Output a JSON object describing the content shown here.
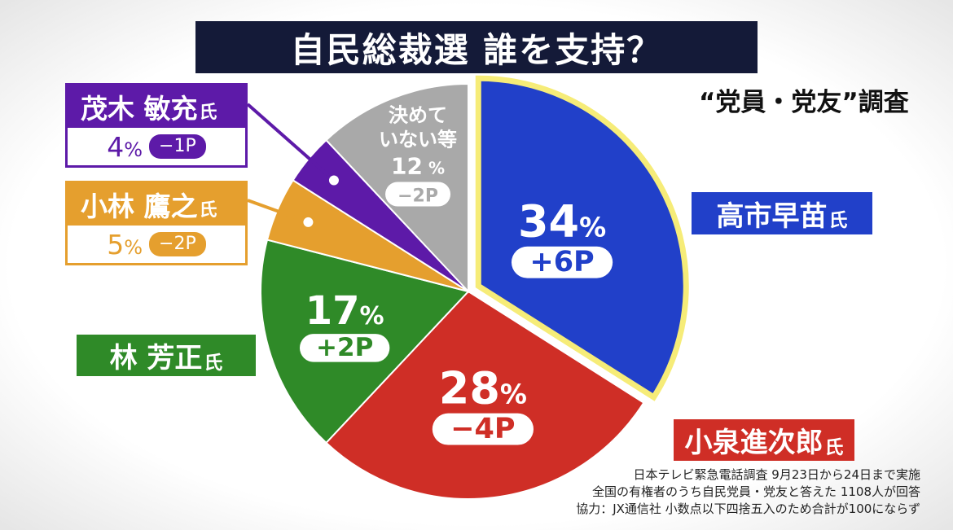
{
  "title": "自民総裁選 誰を支持？",
  "subtitle": "“党員・党友”調査",
  "colors": {
    "takaichi": "#2140c9",
    "koizumi": "#cf2e26",
    "hayashi": "#2f8a28",
    "kobayashi": "#e59f2e",
    "motegi": "#5d1aa8",
    "undecided": "#a9a9a9",
    "highlight": "#f6ec78"
  },
  "chart_data": {
    "type": "pie",
    "start": "12 o'clock, clockwise",
    "highlighted": "高市早苗",
    "slices": [
      {
        "name": "高市早苗",
        "suffix": "氏",
        "value": 34,
        "change": "+6P",
        "color_key": "takaichi"
      },
      {
        "name": "小泉進次郎",
        "suffix": "氏",
        "value": 28,
        "change": "−4P",
        "color_key": "koizumi"
      },
      {
        "name": "林 芳正",
        "suffix": "氏",
        "value": 17,
        "change": "+2P",
        "color_key": "hayashi"
      },
      {
        "name": "小林 鷹之",
        "suffix": "氏",
        "value": 5,
        "change": "−2P",
        "color_key": "kobayashi"
      },
      {
        "name": "茂木 敏充",
        "suffix": "氏",
        "value": 4,
        "change": "−1P",
        "color_key": "motegi"
      },
      {
        "name": "決めていない等",
        "name_lines": [
          "決めて",
          "いない等"
        ],
        "suffix": "",
        "value": 12,
        "change": "−2P",
        "color_key": "undecided"
      }
    ]
  },
  "labels": {
    "percent_sign": "%",
    "takaichi": {
      "name": "高市早苗",
      "suffix": "氏"
    },
    "koizumi": {
      "name": "小泉進次郎",
      "suffix": "氏"
    },
    "hayashi": {
      "name": "林 芳正",
      "suffix": "氏"
    },
    "kobayashi": {
      "name": "小林 鷹之",
      "suffix": "氏",
      "pct": "5",
      "change": "−2P"
    },
    "motegi": {
      "name": "茂木 敏充",
      "suffix": "氏",
      "pct": "4",
      "change": "−1P"
    }
  },
  "notes": [
    "日本テレビ緊急電話調査 9月23日から24日まで実施",
    "全国の有権者のうち自民党員・党友と答えた 1108人が回答",
    "協力：JX通信社 小数点以下四捨五入のため合計が100にならず"
  ]
}
